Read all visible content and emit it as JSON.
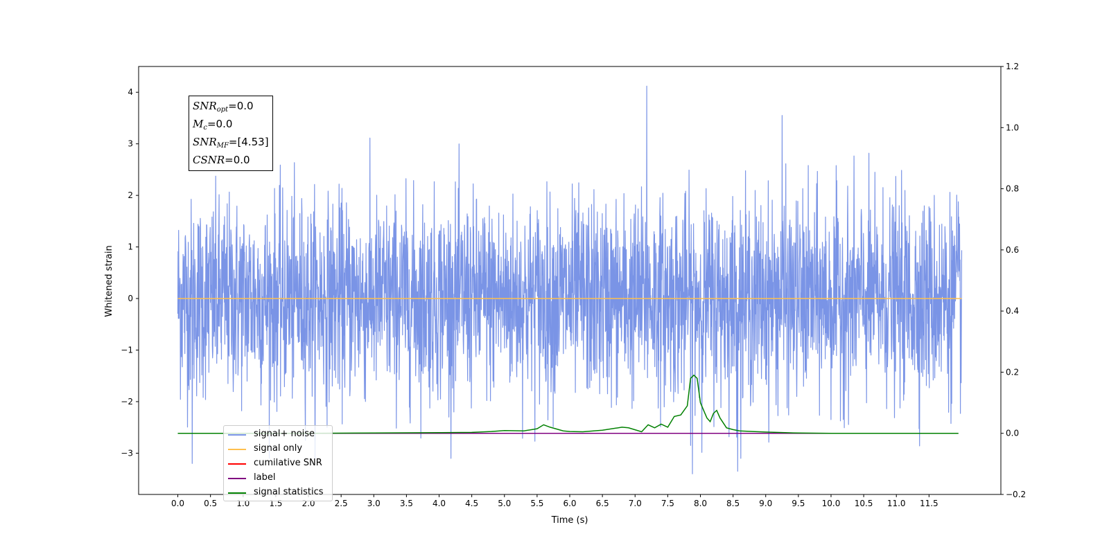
{
  "chart_data": {
    "type": "line",
    "xlabel": "Time (s)",
    "ylabel": "Whitened strain",
    "xlim": [
      -0.6,
      12.6
    ],
    "ylim": [
      -3.8,
      4.5
    ],
    "y2lim": [
      -0.2,
      1.2
    ],
    "x_ticks": [
      "0.0",
      "0.5",
      "1.0",
      "1.5",
      "2.0",
      "2.5",
      "3.0",
      "3.5",
      "4.0",
      "4.5",
      "5.0",
      "5.5",
      "6.0",
      "6.5",
      "7.0",
      "7.5",
      "8.0",
      "8.5",
      "9.0",
      "9.5",
      "10.0",
      "10.5",
      "11.0",
      "11.5"
    ],
    "y_ticks": [
      "4",
      "3",
      "2",
      "1",
      "0",
      "−1",
      "−2",
      "−3"
    ],
    "y2_ticks": [
      "1.2",
      "1.0",
      "0.8",
      "0.6",
      "0.4",
      "0.2",
      "0.0",
      "−0.2"
    ],
    "grid": false,
    "legend_position": "lower-left",
    "annotation": {
      "snr_opt": {
        "sym": "SNR",
        "sub": "opt",
        "val": "=0.0"
      },
      "mc": {
        "sym": "M",
        "sub": "c",
        "val": "=0.0"
      },
      "snr_mf": {
        "sym": "SNR",
        "sub": "MF",
        "val": "=[4.53]"
      },
      "csnr": {
        "sym": "CSNR",
        "val": "=0.0"
      }
    },
    "series": [
      {
        "name": "signal+ noise",
        "color": "#7a94e6",
        "x_range": [
          0.0,
          12.0
        ],
        "mean": 0.0,
        "std": 1.0,
        "min": -3.4,
        "max": 4.12,
        "notable_peaks": [
          {
            "x": 7.18,
            "y": 4.12
          },
          {
            "x": 9.25,
            "y": 3.55
          },
          {
            "x": 7.88,
            "y": -3.4
          },
          {
            "x": 8.57,
            "y": -3.35
          },
          {
            "x": 0.22,
            "y": -3.2
          }
        ]
      },
      {
        "name": "signal only",
        "color": "#ffc04d",
        "x": [
          0.0,
          12.0
        ],
        "y": [
          0.0,
          0.0
        ]
      },
      {
        "name": "cumilative SNR",
        "color": "#ff0000",
        "x": [],
        "y": []
      },
      {
        "name": "label",
        "color": "#800080",
        "axis": "right",
        "x": [
          0.0,
          11.95
        ],
        "y": [
          0.0,
          0.0
        ]
      },
      {
        "name": "signal statistics",
        "color": "#008000",
        "axis": "right",
        "x": [
          0.0,
          1.0,
          2.0,
          3.0,
          4.0,
          4.5,
          4.8,
          5.0,
          5.3,
          5.5,
          5.6,
          5.7,
          5.9,
          6.0,
          6.2,
          6.5,
          6.8,
          6.9,
          7.1,
          7.2,
          7.3,
          7.4,
          7.5,
          7.6,
          7.7,
          7.8,
          7.85,
          7.9,
          7.95,
          8.0,
          8.1,
          8.15,
          8.2,
          8.25,
          8.3,
          8.4,
          8.5,
          8.6,
          8.8,
          9.0,
          9.3,
          9.5,
          10.0,
          11.0,
          11.95
        ],
        "y": [
          0.0,
          0.0,
          0.0,
          0.001,
          0.002,
          0.003,
          0.006,
          0.009,
          0.008,
          0.015,
          0.028,
          0.02,
          0.008,
          0.006,
          0.005,
          0.01,
          0.02,
          0.018,
          0.005,
          0.028,
          0.018,
          0.03,
          0.02,
          0.055,
          0.06,
          0.09,
          0.18,
          0.19,
          0.18,
          0.1,
          0.05,
          0.038,
          0.065,
          0.075,
          0.05,
          0.018,
          0.012,
          0.008,
          0.006,
          0.004,
          0.002,
          0.001,
          0.0,
          0.0,
          0.0
        ]
      }
    ]
  },
  "legend": [
    {
      "label": "signal+ noise",
      "color": "#7a94e6"
    },
    {
      "label": "signal only",
      "color": "#ffc04d"
    },
    {
      "label": "cumilative SNR",
      "color": "#ff0000"
    },
    {
      "label": "label",
      "color": "#800080"
    },
    {
      "label": "signal statistics",
      "color": "#008000"
    }
  ]
}
